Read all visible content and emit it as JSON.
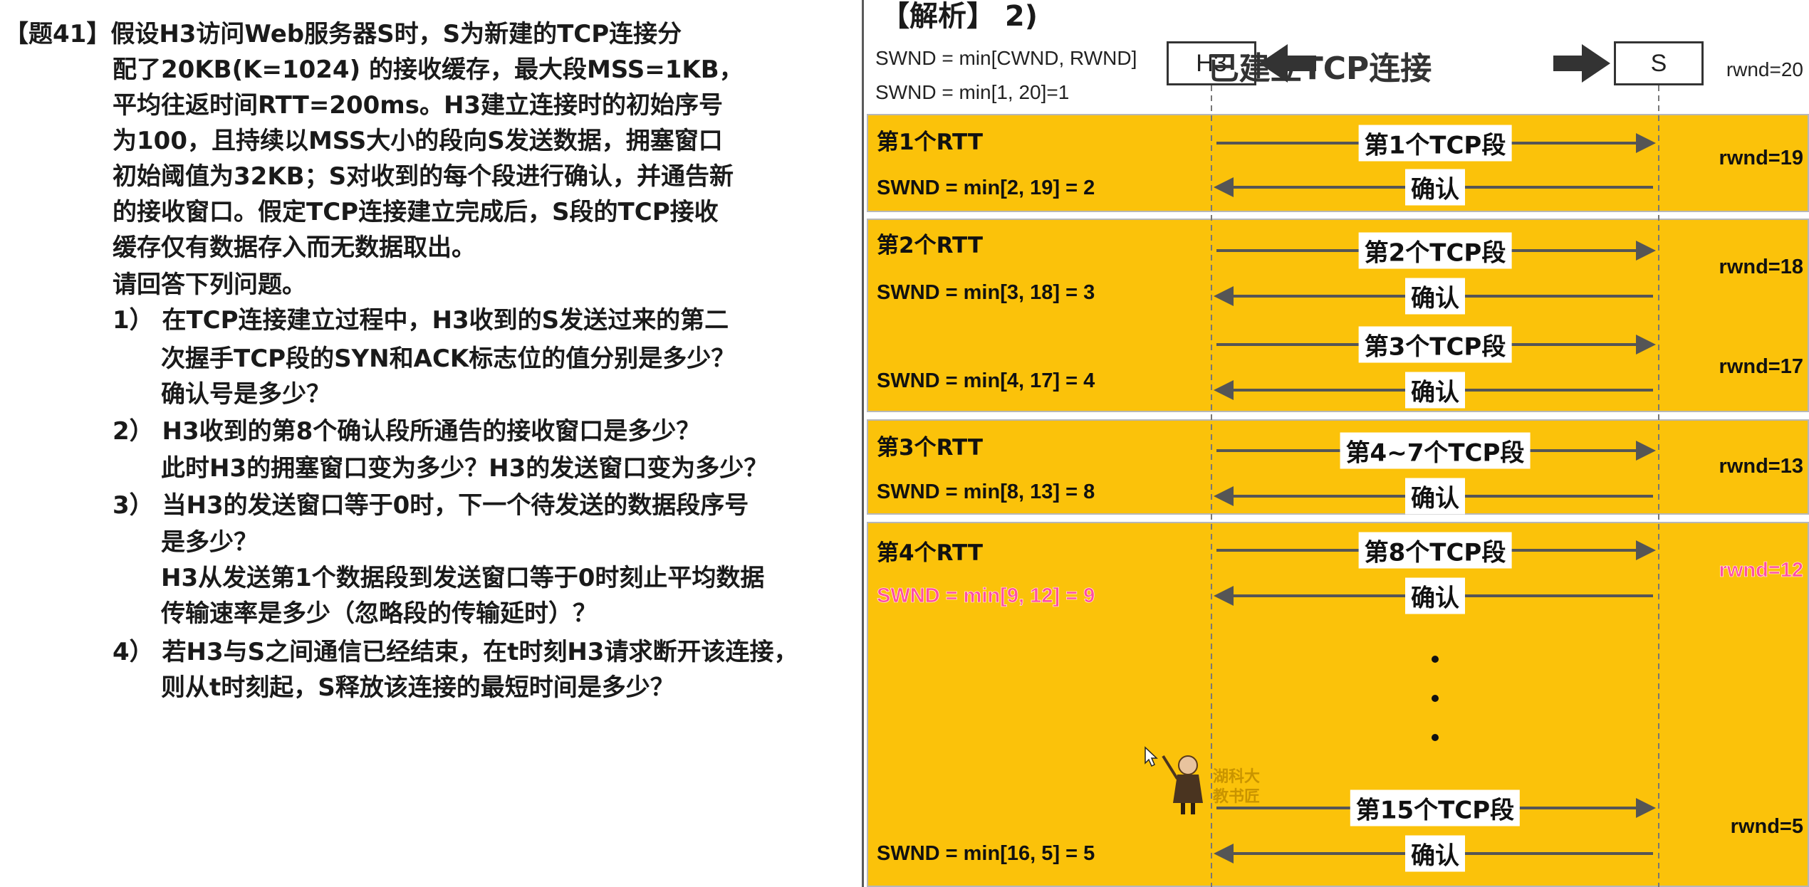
{
  "question": {
    "lines": [
      "【题41】假设H3访问Web服务器S时，S为新建的TCP连接分",
      "配了20KB(K=1024) 的接收缓存，最大段MSS=1KB，",
      "平均往返时间RTT=200ms。H3建立连接时的初始序号",
      "为100，且持续以MSS大小的段向S发送数据，拥塞窗口",
      "初始阈值为32KB；S对收到的每个段进行确认，并通告新",
      "的接收窗口。假定TCP连接建立完成后，S段的TCP接收",
      "缓存仅有数据存入而无数据取出。",
      "请回答下列问题。",
      "1）  在TCP连接建立过程中，H3收到的S发送过来的第二",
      "次握手TCP段的SYN和ACK标志位的值分别是多少？",
      "确认号是多少？",
      "2）  H3收到的第8个确认段所通告的接收窗口是多少？",
      "此时H3的拥塞窗口变为多少？H3的发送窗口变为多少？",
      "3）  当H3的发送窗口等于0时，下一个待发送的数据段序号",
      "是多少？",
      "H3从发送第1个数据段到发送窗口等于0时刻止平均数据",
      "传输速率是多少（忽略段的传输延时）？",
      "4）  若H3与S之间通信已经结束，在t时刻H3请求断开该连接，",
      "则从t时刻起，S释放该连接的最短时间是多少？"
    ]
  },
  "diagram": {
    "heading": "【解析】  2)",
    "header_formula_1": "SWND = min[CWND, RWND]",
    "header_formula_2": "SWND = min[1, 20]=1",
    "host_left": "H3",
    "host_right": "S",
    "connection_label": "已建立TCP连接",
    "rwnd_initial": "rwnd=20",
    "rtt1": {
      "label": "第1个RTT",
      "seg_label": "第1个TCP段",
      "ack_label": "确认",
      "swnd": "SWND = min[2, 19] = 2",
      "rwnd": "rwnd=19"
    },
    "rtt2": {
      "label": "第2个RTT",
      "seg1_label": "第2个TCP段",
      "ack1_label": "确认",
      "swnd1": "SWND = min[3, 18] = 3",
      "rwnd1": "rwnd=18",
      "seg2_label": "第3个TCP段",
      "ack2_label": "确认",
      "swnd2": "SWND = min[4, 17] = 4",
      "rwnd2": "rwnd=17"
    },
    "rtt3": {
      "label": "第3个RTT",
      "seg_label": "第4~7个TCP段",
      "ack_label": "确认",
      "swnd": "SWND = min[8, 13] = 8",
      "rwnd": "rwnd=13"
    },
    "rtt4": {
      "label": "第4个RTT",
      "seg1_label": "第8个TCP段",
      "ack1_label": "确认",
      "swnd1": "SWND = min[9, 12] = 9",
      "rwnd1": "rwnd=12",
      "seg2_label": "第15个TCP段",
      "ack2_label": "确认",
      "swnd2": "SWND = min[16, 5] = 5",
      "rwnd2": "rwnd=5"
    },
    "watermark": "湖科大 教书匠",
    "colors": {
      "block_fill": "#fbc20a",
      "arrow": "#555555",
      "highlight": "#ff4fa3"
    }
  }
}
